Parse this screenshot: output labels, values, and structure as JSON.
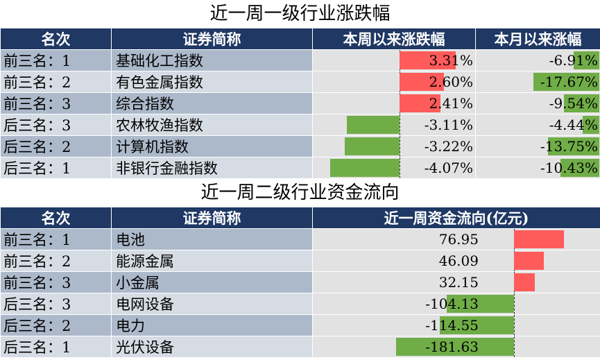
{
  "table1": {
    "title": "近一周一级行业涨跌幅",
    "headers": [
      "名次",
      "证券简称",
      "本周以来涨跌幅",
      "本月以来涨幅"
    ],
    "rows": [
      {
        "rank": "前三名：1",
        "name": "基础化工指数",
        "week": "3.31%",
        "week_val": 3.31,
        "month": "-6.91%",
        "month_val": -6.91
      },
      {
        "rank": "前三名：2",
        "name": "有色金属指数",
        "week": "2.60%",
        "week_val": 2.6,
        "month": "-17.67%",
        "month_val": -17.67
      },
      {
        "rank": "前三名：3",
        "name": "综合指数",
        "week": "2.41%",
        "week_val": 2.41,
        "month": "-9.54%",
        "month_val": -9.54
      },
      {
        "rank": "后三名：3",
        "name": "农林牧渔指数",
        "week": "-3.11%",
        "week_val": -3.11,
        "month": "-4.44%",
        "month_val": -4.44
      },
      {
        "rank": "后三名：2",
        "name": "计算机指数",
        "week": "-3.22%",
        "week_val": -3.22,
        "month": "-13.75%",
        "month_val": -13.75
      },
      {
        "rank": "后三名：1",
        "name": "非银行金融指数",
        "week": "-4.07%",
        "week_val": -4.07,
        "month": "-10.43%",
        "month_val": -10.43
      }
    ]
  },
  "table2": {
    "title": "近一周二级行业资金流向",
    "headers": [
      "名次",
      "证券简称",
      "近一周资金流向(亿元)"
    ],
    "rows": [
      {
        "rank": "前三名：1",
        "name": "电池",
        "flow": "76.95",
        "flow_val": 76.95
      },
      {
        "rank": "前三名：2",
        "name": "能源金属",
        "flow": "46.09",
        "flow_val": 46.09
      },
      {
        "rank": "前三名：3",
        "name": "小金属",
        "flow": "32.15",
        "flow_val": 32.15
      },
      {
        "rank": "后三名：3",
        "name": "电网设备",
        "flow": "-104.13",
        "flow_val": -104.13
      },
      {
        "rank": "后三名：2",
        "name": "电力",
        "flow": "-114.55",
        "flow_val": -114.55
      },
      {
        "rank": "后三名：1",
        "name": "光伏设备",
        "flow": "-181.63",
        "flow_val": -181.63
      }
    ]
  },
  "colors": {
    "header": "#1f3864",
    "positive": "#ff5b5b",
    "negative": "#70ad47"
  }
}
